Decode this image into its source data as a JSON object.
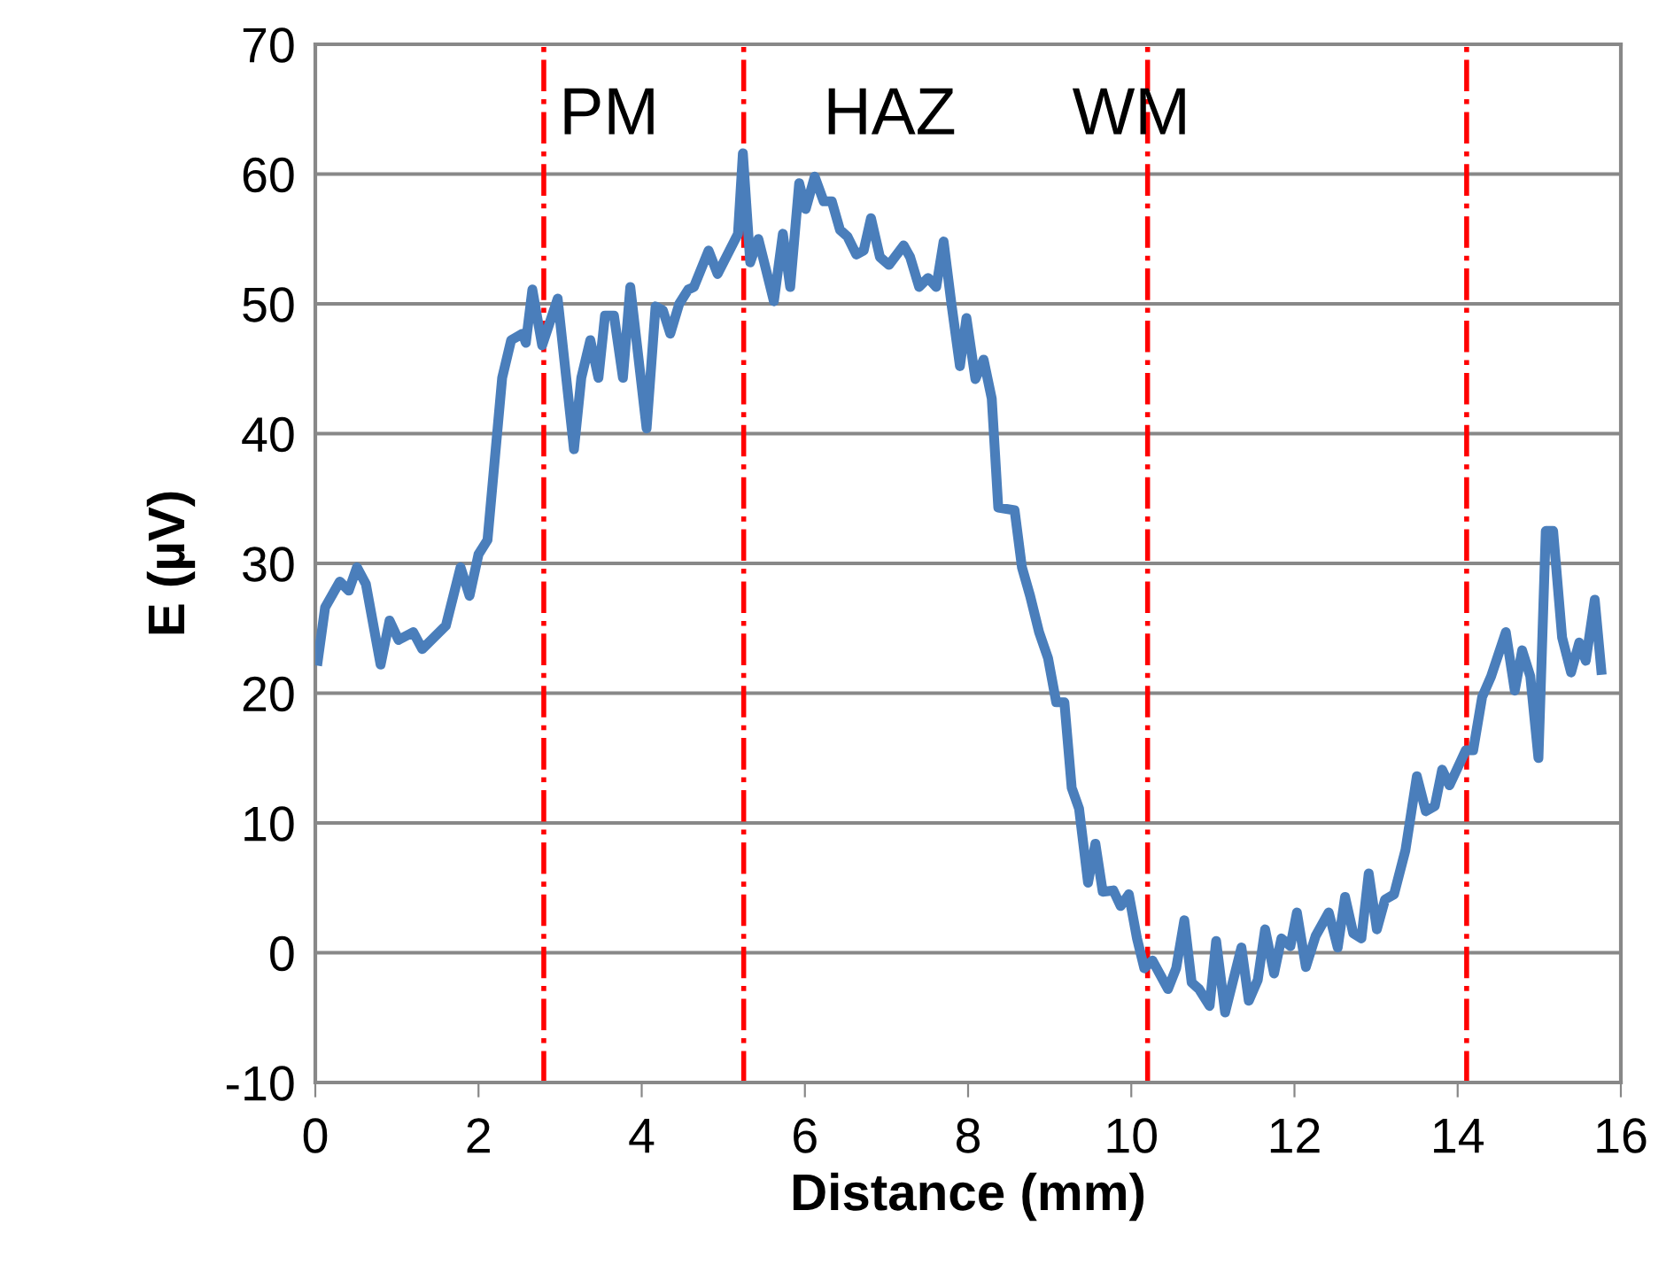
{
  "chart_data": {
    "type": "line",
    "xlabel": "Distance (mm)",
    "ylabel": "E (µV)",
    "xlim": [
      0,
      16
    ],
    "xticks": [
      0,
      2,
      4,
      6,
      8,
      10,
      12,
      14,
      16
    ],
    "ylim": [
      -10,
      70
    ],
    "yticks": [
      -10,
      0,
      10,
      20,
      30,
      40,
      50,
      60,
      70
    ],
    "grid": "y",
    "legend": false,
    "marker": "none",
    "line_style": "solid",
    "series": [
      {
        "color": "#4a7ebb",
        "x": [
          0.03,
          0.12,
          0.3,
          0.41,
          0.51,
          0.62,
          0.8,
          0.91,
          1.02,
          1.2,
          1.31,
          1.6,
          1.78,
          1.89,
          2.0,
          2.11,
          2.29,
          2.4,
          2.54,
          2.58,
          2.66,
          2.78,
          2.97,
          3.17,
          3.26,
          3.37,
          3.47,
          3.55,
          3.66,
          3.77,
          3.86,
          4.06,
          4.17,
          4.26,
          4.35,
          4.46,
          4.57,
          4.64,
          4.82,
          4.93,
          5.18,
          5.24,
          5.33,
          5.43,
          5.62,
          5.73,
          5.82,
          5.93,
          6.01,
          6.12,
          6.23,
          6.33,
          6.43,
          6.52,
          6.63,
          6.72,
          6.81,
          6.92,
          7.03,
          7.21,
          7.29,
          7.4,
          7.51,
          7.61,
          7.7,
          7.8,
          7.9,
          7.98,
          8.09,
          8.19,
          8.29,
          8.37,
          8.57,
          8.66,
          8.76,
          8.87,
          8.98,
          9.08,
          9.18,
          9.27,
          9.36,
          9.47,
          9.56,
          9.65,
          9.78,
          9.87,
          9.97,
          10.07,
          10.16,
          10.26,
          10.45,
          10.55,
          10.65,
          10.74,
          10.83,
          10.96,
          11.04,
          11.15,
          11.25,
          11.35,
          11.44,
          11.55,
          11.64,
          11.75,
          11.84,
          11.95,
          12.03,
          12.14,
          12.26,
          12.42,
          12.53,
          12.62,
          12.72,
          12.82,
          12.91,
          13.01,
          13.11,
          13.22,
          13.36,
          13.5,
          13.61,
          13.72,
          13.81,
          13.9,
          14.1,
          14.19,
          14.3,
          14.41,
          14.59,
          14.7,
          14.79,
          14.89,
          14.99,
          15.08,
          15.17,
          15.28,
          15.39,
          15.49,
          15.57,
          15.68,
          15.76
        ],
        "values": [
          22.5,
          26.6,
          28.6,
          27.9,
          29.7,
          28.4,
          22.2,
          25.6,
          24.1,
          24.7,
          23.4,
          25.2,
          29.7,
          27.5,
          30.7,
          31.8,
          44.3,
          47.2,
          47.7,
          47.0,
          51.1,
          46.8,
          50.4,
          38.8,
          44.3,
          47.2,
          44.3,
          49.1,
          49.1,
          44.3,
          51.3,
          40.4,
          49.8,
          49.5,
          47.7,
          50.0,
          51.1,
          51.3,
          54.1,
          52.3,
          55.4,
          61.6,
          53.2,
          55.0,
          50.2,
          55.4,
          51.3,
          59.3,
          57.3,
          59.8,
          57.9,
          57.9,
          55.7,
          55.2,
          53.8,
          54.1,
          56.6,
          53.6,
          53.0,
          54.5,
          53.6,
          51.3,
          52.0,
          51.3,
          54.8,
          49.8,
          45.2,
          48.9,
          44.2,
          45.7,
          42.7,
          34.3,
          34.1,
          29.7,
          27.5,
          24.7,
          22.7,
          19.3,
          19.3,
          12.7,
          11.1,
          5.4,
          8.4,
          4.7,
          4.8,
          3.6,
          4.5,
          1.1,
          -1.2,
          -0.6,
          -2.8,
          -1.2,
          2.5,
          -2.3,
          -2.8,
          -4.1,
          0.9,
          -4.6,
          -2.1,
          0.4,
          -3.7,
          -2.1,
          1.8,
          -1.6,
          1.1,
          0.5,
          3.1,
          -1.1,
          1.3,
          3.1,
          0.4,
          4.3,
          1.5,
          1.1,
          6.1,
          1.8,
          4.1,
          4.5,
          7.9,
          13.6,
          10.9,
          11.3,
          14.1,
          12.9,
          15.6,
          15.6,
          19.7,
          21.3,
          24.7,
          20.2,
          23.3,
          21.3,
          15.0,
          32.5,
          32.5,
          24.3,
          21.6,
          23.9,
          22.5,
          27.2,
          21.8
        ]
      }
    ],
    "ref_lines": [
      {
        "axis": "x",
        "value": 2.8,
        "color": "#ff0000",
        "line_style": "dashdot"
      },
      {
        "axis": "x",
        "value": 5.25,
        "color": "#ff0000",
        "line_style": "dashdot"
      },
      {
        "axis": "x",
        "value": 10.2,
        "color": "#ff0000",
        "line_style": "dashdot"
      },
      {
        "axis": "x",
        "value": 14.11,
        "color": "#ff0000",
        "line_style": "dashdot"
      }
    ],
    "annotations": [
      "PM",
      "HAZ",
      "WM"
    ]
  }
}
